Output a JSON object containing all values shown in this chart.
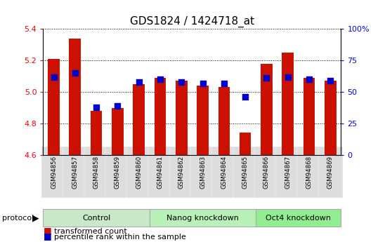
{
  "title": "GDS1824 / 1424718_at",
  "samples": [
    "GSM94856",
    "GSM94857",
    "GSM94858",
    "GSM94859",
    "GSM94860",
    "GSM94861",
    "GSM94862",
    "GSM94863",
    "GSM94864",
    "GSM94865",
    "GSM94866",
    "GSM94867",
    "GSM94868",
    "GSM94869"
  ],
  "transformed_count": [
    5.21,
    5.34,
    4.88,
    4.9,
    5.05,
    5.09,
    5.07,
    5.04,
    5.03,
    4.74,
    5.18,
    5.25,
    5.09,
    5.07
  ],
  "percentile_rank": [
    62,
    65,
    38,
    39,
    58,
    60,
    58,
    57,
    57,
    46,
    61,
    62,
    60,
    59
  ],
  "groups": [
    {
      "label": "Control",
      "start": 0,
      "end": 5,
      "color": "#c8e8c8"
    },
    {
      "label": "Nanog knockdown",
      "start": 5,
      "end": 10,
      "color": "#b8f0b8"
    },
    {
      "label": "Oct4 knockdown",
      "start": 10,
      "end": 14,
      "color": "#90ee90"
    }
  ],
  "bar_color": "#cc1100",
  "dot_color": "#0000cc",
  "ylim_left": [
    4.6,
    5.4
  ],
  "ylim_right": [
    0,
    100
  ],
  "yticks_left": [
    4.6,
    4.8,
    5.0,
    5.2,
    5.4
  ],
  "yticks_right": [
    0,
    25,
    50,
    75,
    100
  ],
  "ytick_labels_right": [
    "0",
    "25",
    "50",
    "75",
    "100%"
  ]
}
